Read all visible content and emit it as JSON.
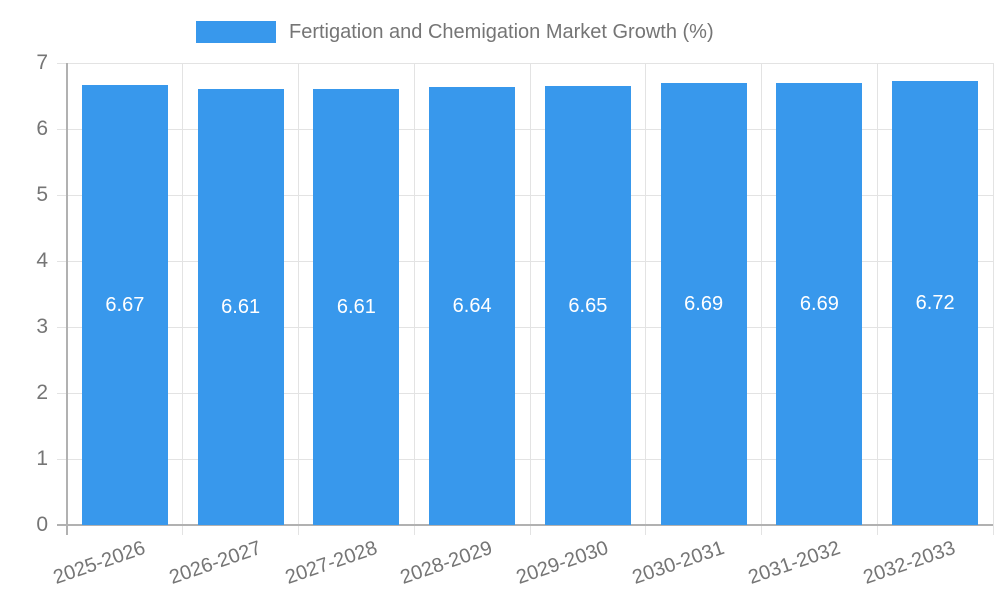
{
  "chart_data": {
    "type": "bar",
    "title": "Fertigation and Chemigation Market Growth (%)",
    "series_name": "Fertigation and Chemigation Market Growth (%)",
    "categories": [
      "2025-2026",
      "2026-2027",
      "2027-2028",
      "2028-2029",
      "2029-2030",
      "2030-2031",
      "2031-2032",
      "2032-2033"
    ],
    "values": [
      6.67,
      6.61,
      6.61,
      6.64,
      6.65,
      6.69,
      6.69,
      6.72
    ],
    "value_labels": [
      "6.67",
      "6.61",
      "6.61",
      "6.64",
      "6.65",
      "6.69",
      "6.69",
      "6.72"
    ],
    "y_ticks": [
      "0",
      "1",
      "2",
      "3",
      "4",
      "5",
      "6",
      "7"
    ],
    "ylim": [
      0,
      7
    ],
    "xlabel": "",
    "ylabel": "",
    "grid": "on",
    "legend_position": "top",
    "colors": {
      "bar": "#3898EC",
      "grid": "#E3E3E3",
      "axis": "#B1B1B1",
      "tick_text": "#757575",
      "value_label_text": "#FFFFFF",
      "background": "#FFFFFF"
    }
  }
}
